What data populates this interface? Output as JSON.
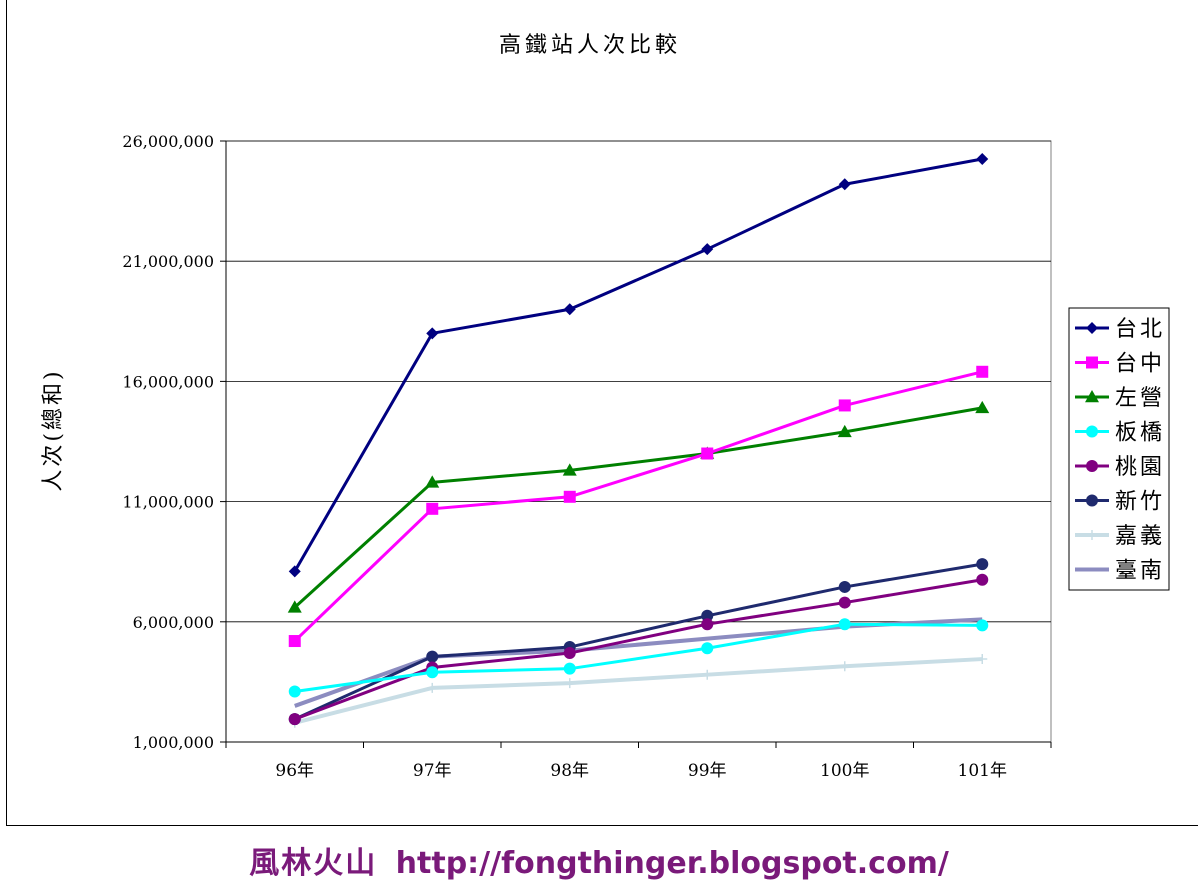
{
  "chart_data": {
    "type": "line",
    "title": "高鐵站人次比較",
    "ylabel": "人次(總和)",
    "xlabel": "",
    "categories": [
      "96年",
      "97年",
      "98年",
      "99年",
      "100年",
      "101年"
    ],
    "ylim": [
      1000000,
      26000000
    ],
    "yticks": [
      1000000,
      6000000,
      11000000,
      16000000,
      21000000,
      26000000
    ],
    "ytick_labels": [
      "1,000,000",
      "6,000,000",
      "11,000,000",
      "16,000,000",
      "21,000,000",
      "26,000,000"
    ],
    "grid": "horizontal",
    "legend_position": "right",
    "series": [
      {
        "name": "台北",
        "color": "#000080",
        "marker": "diamond",
        "values": [
          8100000,
          18000000,
          19000000,
          21500000,
          24200000,
          25250000
        ]
      },
      {
        "name": "台中",
        "color": "#ff00ff",
        "marker": "square",
        "values": [
          5200000,
          10700000,
          11200000,
          13000000,
          15000000,
          16400000
        ]
      },
      {
        "name": "左營",
        "color": "#008000",
        "marker": "triangle",
        "values": [
          6600000,
          11800000,
          12300000,
          13000000,
          13900000,
          14900000
        ]
      },
      {
        "name": "板橋",
        "color": "#00ffff",
        "marker": "circle",
        "values": [
          3100000,
          3900000,
          4050000,
          4900000,
          5900000,
          5850000
        ]
      },
      {
        "name": "桃園",
        "color": "#800080",
        "marker": "circle",
        "values": [
          1950000,
          4100000,
          4700000,
          5900000,
          6800000,
          7750000
        ]
      },
      {
        "name": "新竹",
        "color": "#1f2a6e",
        "marker": "circle",
        "values": [
          1950000,
          4550000,
          4950000,
          6250000,
          7450000,
          8400000
        ]
      },
      {
        "name": "嘉義",
        "color": "#c8dde5",
        "marker": "plus",
        "values": [
          1800000,
          3250000,
          3450000,
          3800000,
          4150000,
          4450000
        ]
      },
      {
        "name": "臺南",
        "color": "#8c8cc0",
        "marker": "none",
        "values": [
          2500000,
          4550000,
          4800000,
          5300000,
          5800000,
          6100000
        ]
      }
    ]
  },
  "credit": {
    "author": "風林火山",
    "url": "http://fongthinger.blogspot.com/"
  }
}
